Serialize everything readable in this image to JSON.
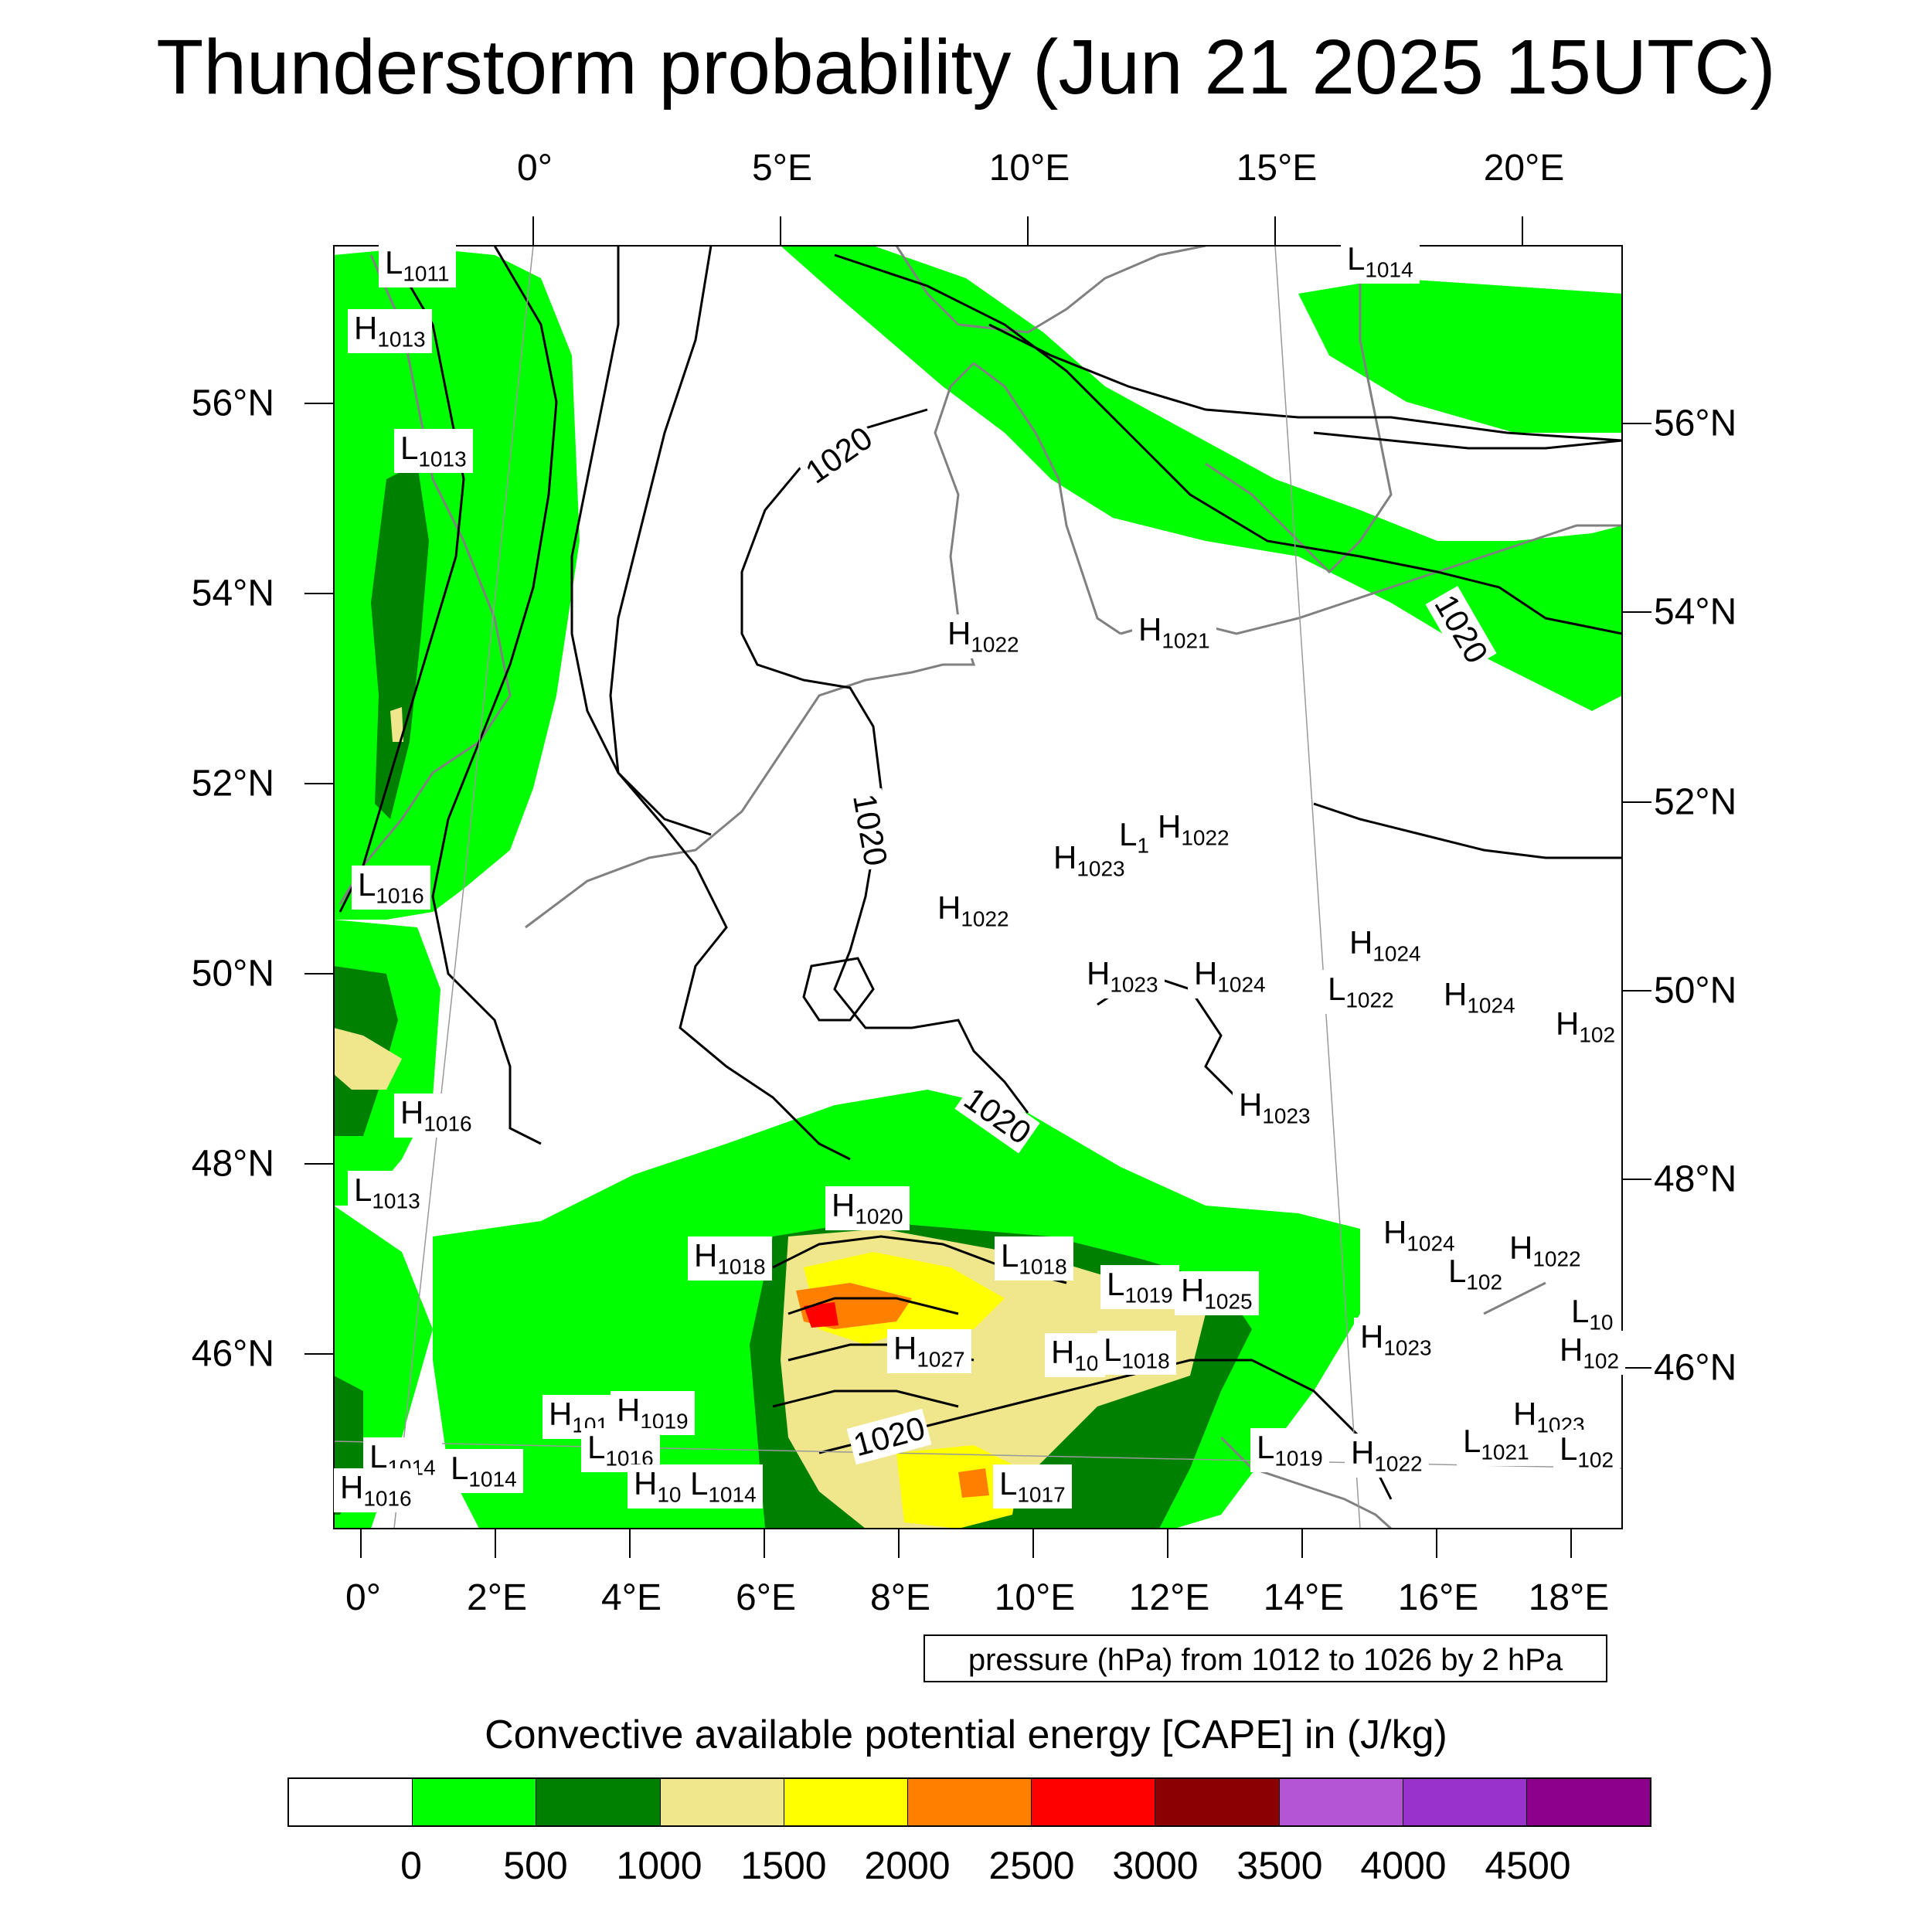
{
  "title": "Thunderstorm probability (Jun 21 2025 15UTC)",
  "top_lon_labels": [
    "0°",
    "5°E",
    "10°E",
    "15°E",
    "20°E"
  ],
  "bottom_lon_labels": [
    "0°",
    "2°E",
    "4°E",
    "6°E",
    "8°E",
    "10°E",
    "12°E",
    "14°E",
    "16°E",
    "18°E"
  ],
  "left_lat_labels": [
    "56°N",
    "54°N",
    "52°N",
    "50°N",
    "48°N",
    "46°N"
  ],
  "right_lat_labels": [
    "56°N",
    "54°N",
    "52°N",
    "50°N",
    "48°N",
    "46°N"
  ],
  "contour_note": "pressure (hPa) from 1012 to 1026 by 2 hPa",
  "isobar_labels": [
    "1020",
    "1020",
    "1020",
    "1020",
    "1020"
  ],
  "pressure_centers": [
    {
      "type": "L",
      "value": "1011"
    },
    {
      "type": "H",
      "value": "1013"
    },
    {
      "type": "L",
      "value": "1013"
    },
    {
      "type": "L",
      "value": "1016"
    },
    {
      "type": "H",
      "value": "1016"
    },
    {
      "type": "L",
      "value": "1013"
    },
    {
      "type": "L",
      "value": "1014"
    },
    {
      "type": "H",
      "value": "1022"
    },
    {
      "type": "H",
      "value": "1021"
    },
    {
      "type": "H",
      "value": "1023"
    },
    {
      "type": "L",
      "value": "1"
    },
    {
      "type": "H",
      "value": "1022"
    },
    {
      "type": "H",
      "value": "1022"
    },
    {
      "type": "H",
      "value": "1023"
    },
    {
      "type": "H",
      "value": "1024"
    },
    {
      "type": "H",
      "value": "1024"
    },
    {
      "type": "L",
      "value": "1022"
    },
    {
      "type": "H",
      "value": "1024"
    },
    {
      "type": "H",
      "value": "102"
    },
    {
      "type": "H",
      "value": "1023"
    },
    {
      "type": "H",
      "value": "1020"
    },
    {
      "type": "H",
      "value": "1018"
    },
    {
      "type": "L",
      "value": "1018"
    },
    {
      "type": "L",
      "value": "1019"
    },
    {
      "type": "H",
      "value": "1025"
    },
    {
      "type": "H",
      "value": "1027"
    },
    {
      "type": "H",
      "value": "10"
    },
    {
      "type": "L",
      "value": "1018"
    },
    {
      "type": "H",
      "value": "1024"
    },
    {
      "type": "L",
      "value": "102"
    },
    {
      "type": "H",
      "value": "1022"
    },
    {
      "type": "H",
      "value": "1023"
    },
    {
      "type": "H",
      "value": "101"
    },
    {
      "type": "H",
      "value": "1019"
    },
    {
      "type": "L",
      "value": "1016"
    },
    {
      "type": "H",
      "value": "10"
    },
    {
      "type": "L",
      "value": "1014"
    },
    {
      "type": "L",
      "value": "1014"
    },
    {
      "type": "L",
      "value": "1014"
    },
    {
      "type": "H",
      "value": "1016"
    },
    {
      "type": "L",
      "value": "1017"
    },
    {
      "type": "L",
      "value": "1019"
    },
    {
      "type": "H",
      "value": "1022"
    },
    {
      "type": "L",
      "value": "1021"
    },
    {
      "type": "H",
      "value": "1023"
    },
    {
      "type": "L",
      "value": "102"
    },
    {
      "type": "L",
      "value": "10"
    },
    {
      "type": "H",
      "value": "102"
    }
  ],
  "colorbar": {
    "title": "Convective available potential energy [CAPE] in (J/kg)",
    "colors": [
      "#ffffff",
      "#00ff00",
      "#008000",
      "#f0e68c",
      "#ffff00",
      "#ff8000",
      "#ff0000",
      "#8b0000",
      "#b455d6",
      "#9932cc",
      "#8b008b"
    ],
    "labels": [
      "0",
      "500",
      "1000",
      "1500",
      "2000",
      "2500",
      "3000",
      "3500",
      "4000",
      "4500"
    ]
  }
}
